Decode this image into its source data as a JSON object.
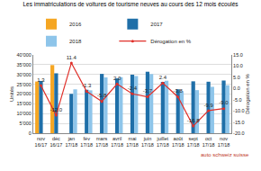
{
  "chart_data": {
    "type": "bar",
    "title": "Les immatriculations de voitures de tourisme neuves au cours des 12 mois écoulés",
    "y_label": "Unités",
    "y2_label": "Dérogation en %",
    "annotations": [
      "auto schweiz suisse"
    ],
    "categories": [
      "nov 16/17",
      "déc 16/17",
      "jan 17/18",
      "fév 17/18",
      "mars 17/18",
      "avril 17/18",
      "mai 17/18",
      "juin 17/18",
      "juillet 17/18",
      "août 17/18",
      "sept 17/18",
      "oct 17/18",
      "nov 17/18"
    ],
    "series": [
      {
        "name": "2016",
        "type": "bar",
        "color": "#f5a623",
        "values": [
          26400,
          34800,
          null,
          null,
          null,
          null,
          null,
          null,
          null,
          null,
          null,
          null,
          null
        ]
      },
      {
        "name": "2017",
        "type": "bar",
        "color": "#1f6fa8",
        "values": [
          26700,
          30600,
          20100,
          22200,
          30300,
          28000,
          29900,
          31400,
          26200,
          22400,
          26500,
          26300,
          26900
        ]
      },
      {
        "name": "2018",
        "type": "bar",
        "color": "#8ec5ea",
        "values": [
          null,
          null,
          22400,
          21900,
          28500,
          28600,
          29200,
          30200,
          26800,
          21500,
          22000,
          23700,
          24500
        ]
      },
      {
        "name": "Dérogation en %",
        "type": "line",
        "axis": "y2",
        "color": "#e0302a",
        "marker": "circle",
        "data_labels": true,
        "values": [
          1.3,
          -12.0,
          11.4,
          -1.3,
          -5.8,
          2.0,
          -2.4,
          -3.7,
          2.4,
          -3.8,
          -16.8,
          -9.9,
          -9.0
        ],
        "value_labels": [
          "1.3",
          "-12.0",
          "11.4",
          "-1.3",
          "-5.8",
          "2.0",
          "-2.4",
          "-3.7",
          "2.4",
          "-3.8",
          "-16.8",
          "-9.9",
          "-9.0"
        ]
      }
    ],
    "ylim": [
      0,
      40000
    ],
    "yticks": [
      0,
      {
        "value": 5000,
        "label": "5'000"
      },
      {
        "value": 10000,
        "label": "10'000"
      },
      {
        "value": 15000,
        "label": "15'000"
      },
      {
        "value": 20000,
        "label": "20'000"
      },
      {
        "value": 25000,
        "label": "25'000"
      },
      {
        "value": 30000,
        "label": "30'000"
      },
      {
        "value": 35000,
        "label": "35'000"
      },
      {
        "value": 40000,
        "label": "40'000"
      }
    ],
    "y2lim": [
      -20,
      15
    ],
    "y2ticks": [
      {
        "value": -20,
        "label": "-20.0"
      },
      {
        "value": -15,
        "label": "-15.0"
      },
      {
        "value": -10,
        "label": "-10.0"
      },
      {
        "value": -5,
        "label": "-5.0"
      },
      {
        "value": 0,
        "label": "0.0"
      },
      {
        "value": 5,
        "label": "5.0"
      },
      {
        "value": 10,
        "label": "10.0"
      },
      {
        "value": 15,
        "label": "15.0"
      }
    ],
    "grid": true,
    "legend": "top"
  }
}
